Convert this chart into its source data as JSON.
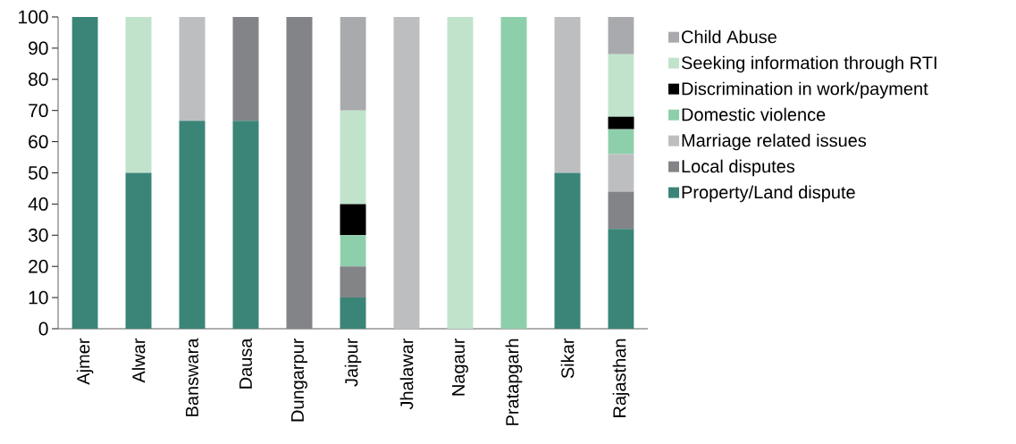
{
  "chart_data": {
    "type": "bar",
    "stacked": true,
    "categories": [
      "Ajmer",
      "Alwar",
      "Banswara",
      "Dausa",
      "Dungarpur",
      "Jaipur",
      "Jhalawar",
      "Nagaur",
      "Pratapgarh",
      "Sikar",
      "Rajasthan"
    ],
    "series": [
      {
        "name": "Property/Land dispute",
        "color": "#3a8577",
        "values": [
          100,
          50,
          66.7,
          66.7,
          null,
          10,
          null,
          null,
          null,
          50,
          32
        ]
      },
      {
        "name": "Local disputes",
        "color": "#838488",
        "values": [
          null,
          null,
          null,
          33.3,
          100,
          10,
          null,
          null,
          null,
          null,
          12
        ]
      },
      {
        "name": "Marriage related issues",
        "color": "#bdbec0",
        "values": [
          null,
          null,
          33.3,
          null,
          null,
          null,
          100,
          null,
          null,
          50,
          12
        ]
      },
      {
        "name": "Domestic violence",
        "color": "#8ecfab",
        "values": [
          null,
          null,
          null,
          null,
          null,
          10,
          null,
          null,
          100,
          null,
          8
        ]
      },
      {
        "name": "Discrimination in work/payment",
        "color": "#000000",
        "values": [
          null,
          null,
          null,
          null,
          null,
          10,
          null,
          null,
          null,
          null,
          4
        ]
      },
      {
        "name": "Seeking information through RTI",
        "color": "#c1e3cc",
        "values": [
          null,
          50,
          null,
          null,
          null,
          30,
          null,
          100,
          null,
          null,
          20
        ]
      },
      {
        "name": "Child Abuse",
        "color": "#a9aaad",
        "values": [
          null,
          null,
          null,
          null,
          null,
          30,
          null,
          null,
          null,
          null,
          12
        ]
      }
    ],
    "ylim": [
      0,
      100
    ],
    "yticks": [
      0,
      10,
      20,
      30,
      40,
      50,
      60,
      70,
      80,
      90,
      100
    ],
    "grid": false,
    "legend": "right"
  }
}
